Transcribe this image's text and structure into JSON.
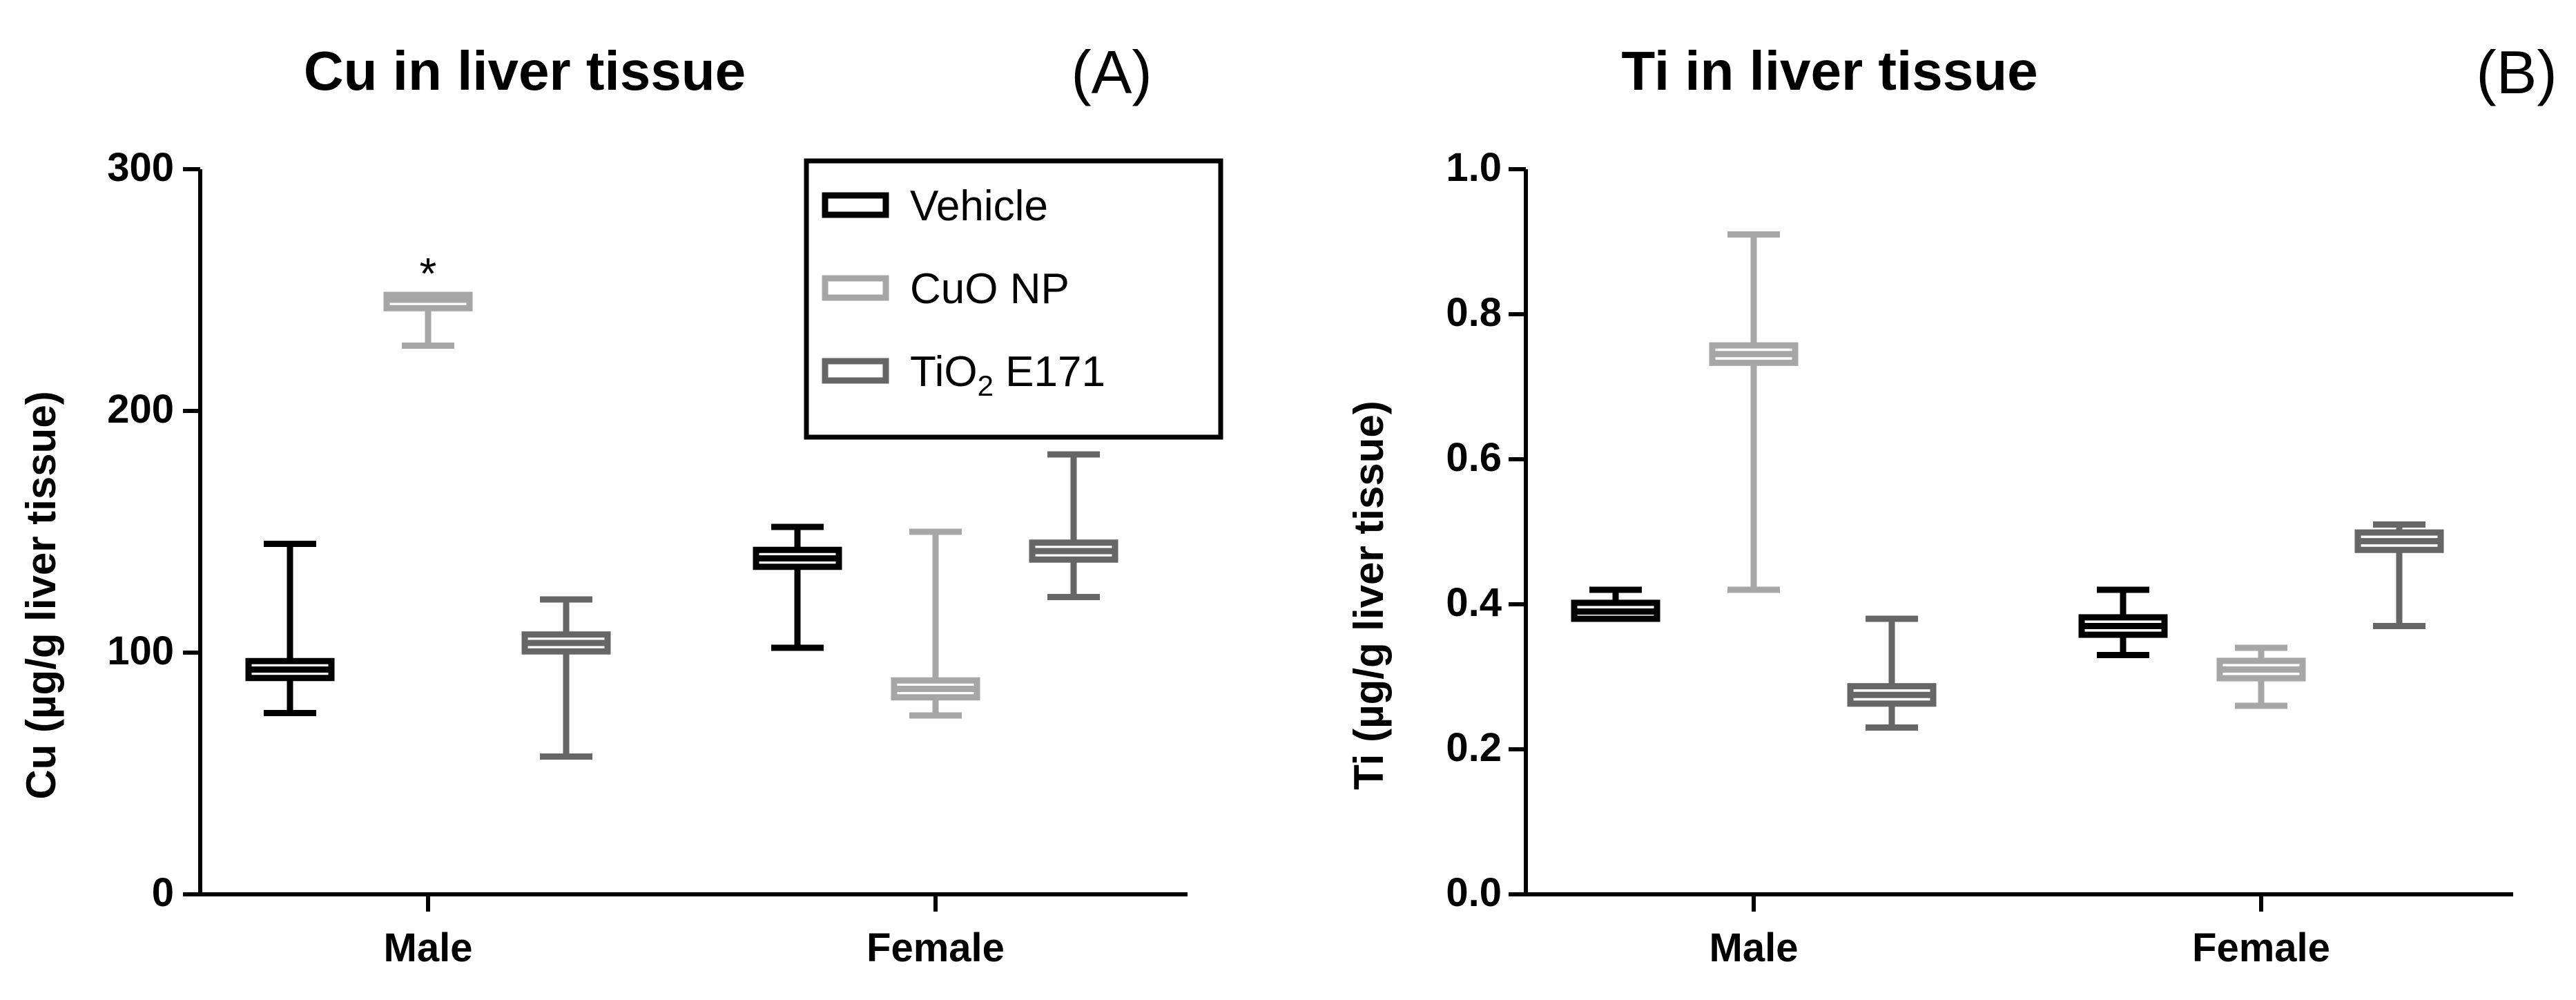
{
  "chart_data": [
    {
      "type": "box",
      "panel": "(A)",
      "title": "Cu in liver tissue",
      "ylabel": "Cu (µg/g liver tissue)",
      "ylim": [
        0,
        300
      ],
      "yticks": [
        0,
        100,
        200,
        300
      ],
      "categories": [
        "Male",
        "Female"
      ],
      "legend": {
        "position": "top-right",
        "entries": [
          {
            "name": "Vehicle",
            "color": "#000000"
          },
          {
            "name": "CuO NP",
            "color": "#a6a6a6"
          },
          {
            "name": "TiO2 E171",
            "name_main": "TiO",
            "name_sub": "2",
            "name_rest": " E171",
            "color": "#666666"
          }
        ]
      },
      "series": [
        {
          "name": "Vehicle",
          "color": "#000000",
          "values": [
            {
              "category": "Male",
              "min": 75,
              "median": 93,
              "max": 145
            },
            {
              "category": "Female",
              "min": 102,
              "median": 139,
              "max": 152
            }
          ]
        },
        {
          "name": "CuO NP",
          "color": "#a6a6a6",
          "values": [
            {
              "category": "Male",
              "min": 227,
              "median": 246,
              "max": 248
            },
            {
              "category": "Female",
              "min": 74,
              "median": 85,
              "max": 150
            }
          ]
        },
        {
          "name": "TiO2 E171",
          "color": "#666666",
          "values": [
            {
              "category": "Male",
              "min": 57,
              "median": 104,
              "max": 122
            },
            {
              "category": "Female",
              "min": 123,
              "median": 142,
              "max": 182
            }
          ]
        }
      ],
      "annotations": [
        {
          "text": "*",
          "series": "CuO NP",
          "category": "Male"
        }
      ]
    },
    {
      "type": "box",
      "panel": "(B)",
      "title": "Ti in liver tissue",
      "ylabel": "Ti (µg/g liver tissue)",
      "ylim": [
        0.0,
        1.0
      ],
      "yticks": [
        "0.0",
        "0.2",
        "0.4",
        "0.6",
        "0.8",
        "1.0"
      ],
      "categories": [
        "Male",
        "Female"
      ],
      "series": [
        {
          "name": "Vehicle",
          "color": "#000000",
          "values": [
            {
              "category": "Male",
              "min": 0.38,
              "median": 0.39,
              "max": 0.42
            },
            {
              "category": "Female",
              "min": 0.33,
              "median": 0.37,
              "max": 0.42
            }
          ]
        },
        {
          "name": "CuO NP",
          "color": "#a6a6a6",
          "values": [
            {
              "category": "Male",
              "min": 0.42,
              "median": 0.745,
              "max": 0.91
            },
            {
              "category": "Female",
              "min": 0.26,
              "median": 0.31,
              "max": 0.34
            }
          ]
        },
        {
          "name": "TiO2 E171",
          "color": "#666666",
          "values": [
            {
              "category": "Male",
              "min": 0.23,
              "median": 0.275,
              "max": 0.38
            },
            {
              "category": "Female",
              "min": 0.37,
              "median": 0.487,
              "max": 0.51
            }
          ]
        }
      ]
    }
  ]
}
